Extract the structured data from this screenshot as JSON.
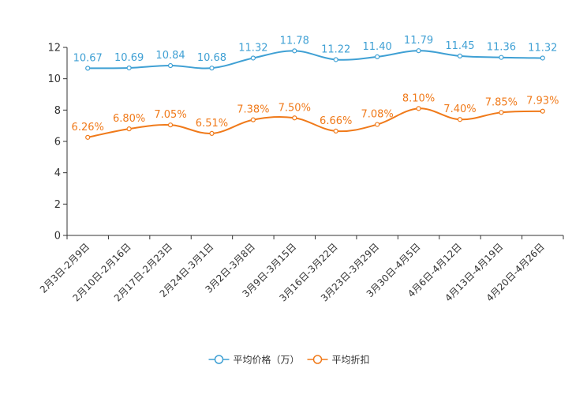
{
  "chart_data": {
    "type": "line",
    "title": "",
    "xlabel": "",
    "ylabel": "",
    "ylim": [
      0,
      12
    ],
    "yticks": [
      0,
      2,
      4,
      6,
      8,
      10,
      12
    ],
    "grid": false,
    "legend_position": "bottom",
    "categories": [
      "2月3日-2月9日",
      "2月10日-2月16日",
      "2月17日-2月23日",
      "2月24日-3月1日",
      "3月2日-3月8日",
      "3月9日-3月15日",
      "3月16日-3月22日",
      "3月23日-3月29日",
      "3月30日-4月5日",
      "4月6日-4月12日",
      "4月13日-4月19日",
      "4月20日-4月26日"
    ],
    "series": [
      {
        "name": "平均价格（万）",
        "color": "#3fa0d4",
        "values": [
          10.67,
          10.69,
          10.84,
          10.68,
          11.32,
          11.78,
          11.22,
          11.4,
          11.79,
          11.45,
          11.36,
          11.32
        ],
        "labels": [
          "10.67",
          "10.69",
          "10.84",
          "10.68",
          "11.32",
          "11.78",
          "11.22",
          "11.40",
          "11.79",
          "11.45",
          "11.36",
          "11.32"
        ]
      },
      {
        "name": "平均折扣",
        "color": "#f07a1a",
        "values": [
          6.26,
          6.8,
          7.05,
          6.51,
          7.38,
          7.5,
          6.66,
          7.08,
          8.1,
          7.4,
          7.85,
          7.93
        ],
        "labels": [
          "6.26%",
          "6.80%",
          "7.05%",
          "6.51%",
          "7.38%",
          "7.50%",
          "6.66%",
          "7.08%",
          "8.10%",
          "7.40%",
          "7.85%",
          "7.93%"
        ]
      }
    ]
  }
}
